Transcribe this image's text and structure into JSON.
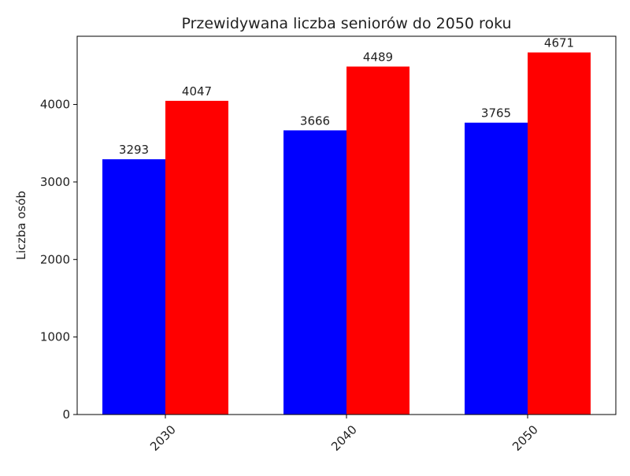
{
  "chart_data": {
    "type": "bar",
    "title": "Przewidywana liczba seniorów do 2050 roku",
    "xlabel": "",
    "ylabel": "Liczba osób",
    "categories": [
      "2030",
      "2040",
      "2050"
    ],
    "series": [
      {
        "color": "#0000ff",
        "values": [
          3293,
          3666,
          3765
        ]
      },
      {
        "color": "#ff0000",
        "values": [
          4047,
          4489,
          4671
        ]
      }
    ],
    "ylim": [
      0,
      4880
    ],
    "yticks": [
      0,
      1000,
      2000,
      3000,
      4000
    ],
    "xtick_rotation_deg": 45,
    "grid": false,
    "legend": "none"
  }
}
